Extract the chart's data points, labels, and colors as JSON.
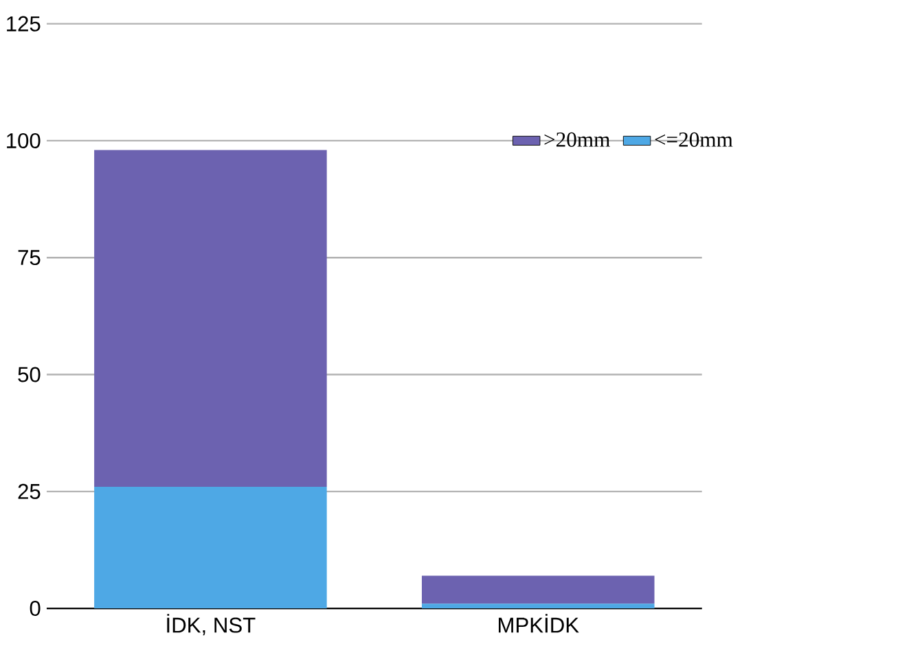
{
  "chart_data": {
    "type": "bar",
    "stacked": true,
    "categories": [
      "İDK, NST",
      "MPKİDK"
    ],
    "series": [
      {
        "name": "<=20mm",
        "color": "#4ea8e5",
        "values": [
          26,
          1
        ]
      },
      {
        "name": ">20mm",
        "color": "#6c62b0",
        "values": [
          72,
          6
        ]
      }
    ],
    "ylim": [
      0,
      125
    ],
    "yticks": [
      0,
      25,
      50,
      75,
      100,
      125
    ],
    "grid": "y",
    "legend": "top right"
  }
}
